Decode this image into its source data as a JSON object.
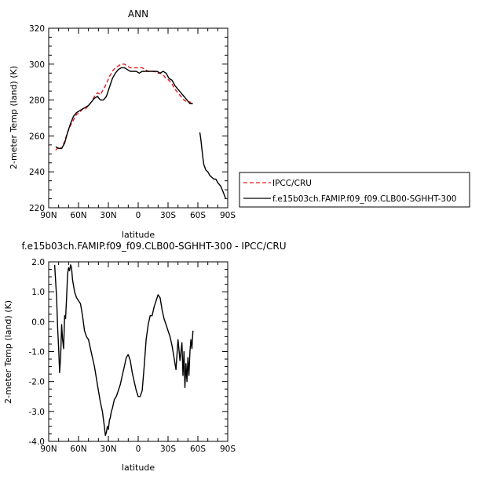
{
  "chart_data": [
    {
      "type": "line",
      "title": "ANN",
      "xlabel": "latitude",
      "ylabel": "2-meter Temp (land) (K)",
      "xlim": [
        90,
        -90
      ],
      "ylim": [
        220,
        320
      ],
      "x_ticks": [
        {
          "value": 90,
          "label": "90N"
        },
        {
          "value": 60,
          "label": "60N"
        },
        {
          "value": 30,
          "label": "30N"
        },
        {
          "value": 0,
          "label": "0"
        },
        {
          "value": -30,
          "label": "30S"
        },
        {
          "value": -60,
          "label": "60S"
        },
        {
          "value": -90,
          "label": "90S"
        }
      ],
      "y_ticks": [
        {
          "value": 220,
          "label": "220"
        },
        {
          "value": 240,
          "label": "240"
        },
        {
          "value": 260,
          "label": "260"
        },
        {
          "value": 280,
          "label": "280"
        },
        {
          "value": 300,
          "label": "300"
        },
        {
          "value": 320,
          "label": "320"
        }
      ],
      "legend": "right",
      "series": [
        {
          "name": "IPCC/CRU",
          "color": "#e41a1c",
          "dash": "dashed",
          "x": [
            83,
            80,
            77,
            74,
            71,
            68,
            65,
            62,
            59,
            56,
            53,
            50,
            47,
            44,
            41,
            38,
            35,
            32,
            29,
            26,
            23,
            20,
            17,
            14,
            11,
            8,
            5,
            2,
            -1,
            -4,
            -7,
            -10,
            -13,
            -16,
            -19,
            -22,
            -25,
            -28,
            -31,
            -34,
            -37,
            -40,
            -43,
            -46,
            -49,
            -52,
            -55
          ],
          "y": [
            252,
            254,
            253,
            257,
            262,
            266,
            269,
            272,
            273,
            275,
            275,
            277,
            279,
            282,
            284,
            283,
            286,
            289,
            293,
            296,
            298,
            299,
            300,
            300,
            299,
            298,
            298,
            298,
            298,
            298,
            297,
            296,
            296,
            296,
            295,
            295,
            294,
            292,
            291,
            289,
            286,
            284,
            282,
            280,
            279,
            279,
            277
          ]
        },
        {
          "name": "f.e15b03ch.FAMIP.f09_f09.CLB00-SGHHT-300",
          "color": "#000000",
          "dash": "solid",
          "x": [
            83,
            80,
            77,
            74,
            71,
            68,
            65,
            62,
            59,
            56,
            53,
            50,
            47,
            44,
            41,
            38,
            35,
            32,
            29,
            26,
            23,
            20,
            17,
            14,
            11,
            8,
            5,
            2,
            -1,
            -4,
            -7,
            -10,
            -13,
            -16,
            -19,
            -22,
            -25,
            -28,
            -31,
            -34,
            -37,
            -40,
            -43,
            -46,
            -49,
            -52,
            -55,
            null,
            -62,
            -63,
            -65,
            -66,
            -68,
            -70,
            -72,
            -74,
            -76,
            -78,
            -80,
            -83,
            -86,
            -88
          ],
          "y": [
            254,
            253,
            253,
            256,
            262,
            267,
            271,
            273,
            274,
            275,
            276,
            277,
            279,
            281,
            282,
            280,
            280,
            282,
            287,
            292,
            295,
            297,
            298,
            298,
            297,
            296,
            296,
            296,
            295,
            296,
            296,
            296,
            296,
            296,
            296,
            295,
            296,
            295,
            292,
            291,
            288,
            286,
            284,
            282,
            280,
            278,
            278,
            null,
            262,
            258,
            248,
            244,
            241,
            240,
            238,
            237,
            236,
            236,
            234,
            232,
            228,
            225
          ]
        }
      ]
    },
    {
      "type": "line",
      "title": "f.e15b03ch.FAMIP.f09_f09.CLB00-SGHHT-300 - IPCC/CRU",
      "xlabel": "latitude",
      "ylabel": "2-meter Temp (land) (K)",
      "xlim": [
        90,
        -90
      ],
      "ylim": [
        -4.0,
        2.0
      ],
      "x_ticks": [
        {
          "value": 90,
          "label": "90N"
        },
        {
          "value": 60,
          "label": "60N"
        },
        {
          "value": 30,
          "label": "30N"
        },
        {
          "value": 0,
          "label": "0"
        },
        {
          "value": -30,
          "label": "30S"
        },
        {
          "value": -60,
          "label": "60S"
        },
        {
          "value": -90,
          "label": "90S"
        }
      ],
      "y_ticks": [
        {
          "value": -4.0,
          "label": "-4.0"
        },
        {
          "value": -3.0,
          "label": "-3.0"
        },
        {
          "value": -2.0,
          "label": "-2.0"
        },
        {
          "value": -1.0,
          "label": "-1.0"
        },
        {
          "value": 0.0,
          "label": "0.0"
        },
        {
          "value": 1.0,
          "label": "1.0"
        },
        {
          "value": 2.0,
          "label": "2.0"
        }
      ],
      "series": [
        {
          "color": "#000000",
          "x": [
            84,
            82,
            81,
            80,
            79,
            78,
            77,
            76,
            75,
            74,
            73,
            72,
            71,
            70,
            69,
            68,
            67,
            66,
            65,
            64,
            63,
            62,
            60,
            58,
            56,
            54,
            52,
            50,
            48,
            46,
            44,
            42,
            40,
            38,
            36,
            34,
            33,
            32,
            31,
            30,
            29,
            28,
            27,
            26,
            24,
            22,
            20,
            18,
            16,
            14,
            12,
            10,
            8,
            6,
            4,
            2,
            0,
            -2,
            -4,
            -6,
            -8,
            -10,
            -12,
            -14,
            -16,
            -18,
            -20,
            -22,
            -24,
            -26,
            -28,
            -30,
            -32,
            -34,
            -36,
            -38,
            -40,
            -42,
            -44,
            -45,
            -46,
            -47,
            -48,
            -49,
            -50,
            -51,
            -52,
            -53,
            -54,
            -55
          ],
          "y": [
            1.9,
            0.8,
            -0.2,
            -0.9,
            -1.7,
            -1.2,
            -0.1,
            -0.6,
            -0.9,
            0.2,
            0.1,
            0.8,
            1.6,
            1.8,
            1.7,
            1.9,
            1.8,
            1.4,
            1.2,
            1.0,
            0.9,
            0.8,
            0.7,
            0.6,
            0.2,
            -0.3,
            -0.5,
            -0.6,
            -0.9,
            -1.2,
            -1.5,
            -1.9,
            -2.3,
            -2.7,
            -3.0,
            -3.5,
            -3.8,
            -3.7,
            -3.5,
            -3.6,
            -3.3,
            -3.2,
            -3.0,
            -2.9,
            -2.6,
            -2.5,
            -2.3,
            -2.1,
            -1.8,
            -1.5,
            -1.2,
            -1.1,
            -1.3,
            -1.7,
            -2.0,
            -2.3,
            -2.5,
            -2.5,
            -2.3,
            -1.5,
            -0.6,
            -0.1,
            0.2,
            0.2,
            0.5,
            0.7,
            0.9,
            0.8,
            0.4,
            0.1,
            -0.1,
            -0.3,
            -0.5,
            -0.8,
            -1.2,
            -1.6,
            -0.6,
            -1.3,
            -0.7,
            -1.8,
            -1.0,
            -2.2,
            -1.4,
            -2.0,
            -1.2,
            -1.8,
            -1.0,
            -0.6,
            -0.9,
            -0.3
          ]
        }
      ]
    }
  ]
}
